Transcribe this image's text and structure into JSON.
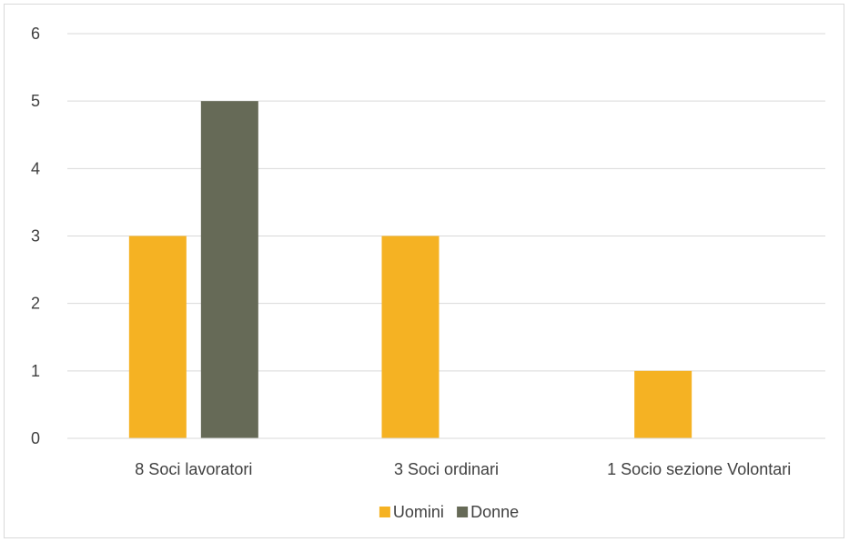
{
  "chart_data": {
    "type": "bar",
    "title": "",
    "xlabel": "",
    "ylabel": "",
    "categories": [
      "8 Soci lavoratori",
      "3 Soci ordinari",
      "1 Socio sezione Volontari"
    ],
    "series": [
      {
        "name": "Uomini",
        "color": "#F5B223",
        "values": [
          3,
          3,
          1
        ]
      },
      {
        "name": "Donne",
        "color": "#666A57",
        "values": [
          5,
          0,
          0
        ]
      }
    ],
    "ylim": [
      0,
      6
    ],
    "yticks": [
      0,
      1,
      2,
      3,
      4,
      5,
      6
    ],
    "grid": true,
    "legend_position": "bottom"
  }
}
